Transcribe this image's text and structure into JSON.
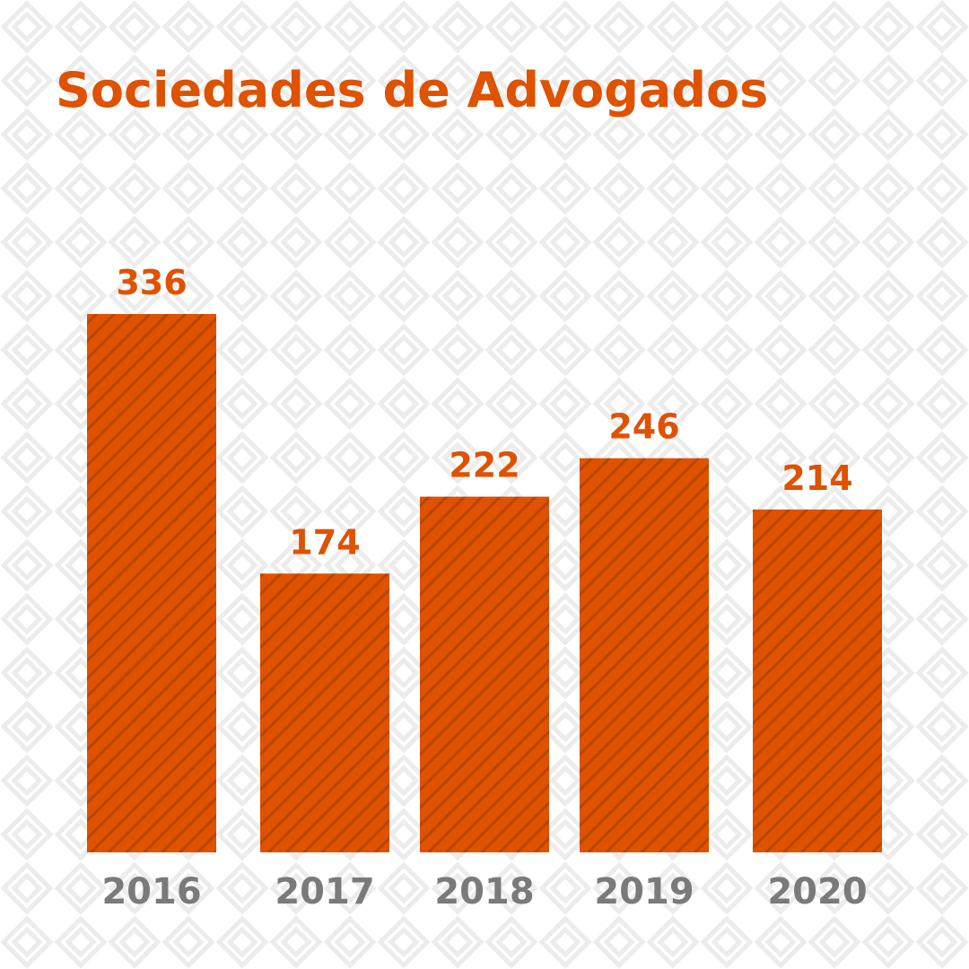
{
  "colors": {
    "bar": "#de5200",
    "bar_stripe": "#b94400",
    "title": "#de5200",
    "value_label": "#de5200",
    "category_label": "#7a7a7a",
    "background": "#ffffff",
    "background_pattern": "#ececec"
  },
  "chart_data": {
    "type": "bar",
    "title": "Sociedades de Advogados",
    "categories": [
      "2016",
      "2017",
      "2018",
      "2019",
      "2020"
    ],
    "values": [
      336,
      174,
      222,
      246,
      214
    ],
    "value_labels": [
      "336",
      "174",
      "222",
      "246",
      "214"
    ],
    "xlabel": "",
    "ylabel": "",
    "ylim": [
      0,
      336
    ],
    "grid": false,
    "legend": "none"
  }
}
